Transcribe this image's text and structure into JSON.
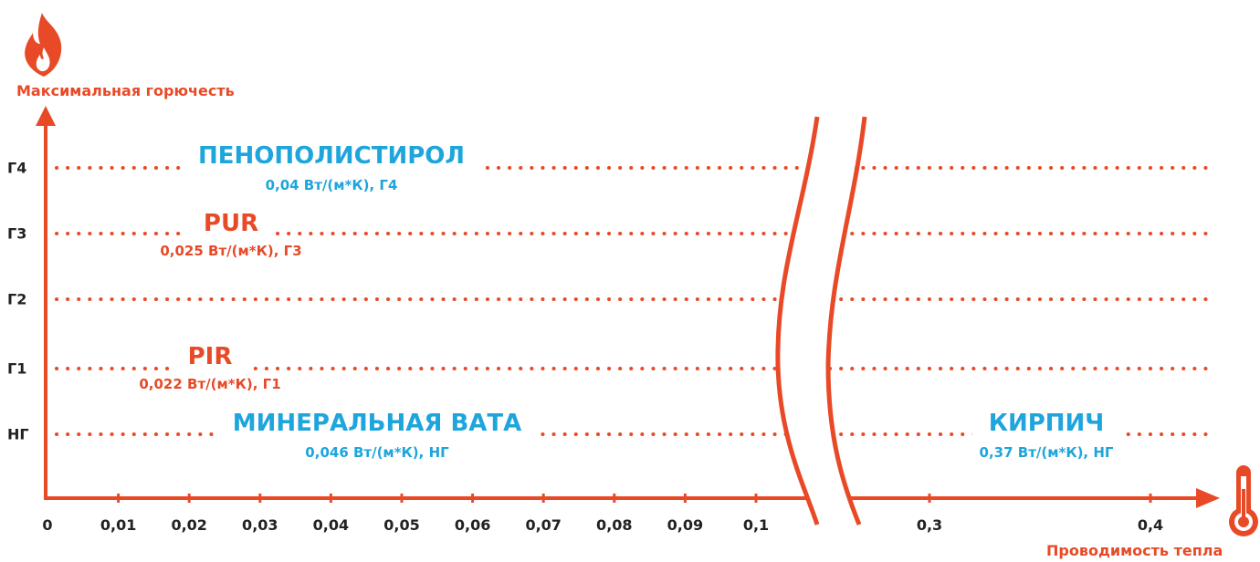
{
  "colors": {
    "accent": "#e84a27",
    "blue": "#1ea5dc",
    "text": "#222222"
  },
  "icons": {
    "y_axis": "flame-icon",
    "x_axis": "thermometer-icon"
  },
  "chart_data": {
    "type": "scatter",
    "ylabel": "Максимальная горючесть",
    "xlabel": "Проводимость тепла",
    "y_categories": [
      "НГ",
      "Г1",
      "Г2",
      "Г3",
      "Г4"
    ],
    "x_ticks": [
      "0",
      "0,01",
      "0,02",
      "0,03",
      "0,04",
      "0,05",
      "0,06",
      "0,07",
      "0,08",
      "0,09",
      "0,1",
      "0,3",
      "0,4"
    ],
    "x_axis_break": true,
    "grid": "dotted",
    "points": [
      {
        "name": "ПЕНОПОЛИСТИРОЛ",
        "value_label": "0,04 Вт/(м*К), Г4",
        "x": 0.04,
        "y": "Г4",
        "color": "#1ea5dc"
      },
      {
        "name": "PUR",
        "value_label": "0,025 Вт/(м*К), Г3",
        "x": 0.025,
        "y": "Г3",
        "color": "#e84a27"
      },
      {
        "name": "PIR",
        "value_label": "0,022 Вт/(м*К), Г1",
        "x": 0.022,
        "y": "Г1",
        "color": "#e84a27"
      },
      {
        "name": "МИНЕРАЛЬНАЯ ВАТА",
        "value_label": "0,046 Вт/(м*К), НГ",
        "x": 0.046,
        "y": "НГ",
        "color": "#1ea5dc"
      },
      {
        "name": "КИРПИЧ",
        "value_label": "0,37 Вт/(м*К), НГ",
        "x": 0.37,
        "y": "НГ",
        "color": "#1ea5dc"
      }
    ]
  }
}
